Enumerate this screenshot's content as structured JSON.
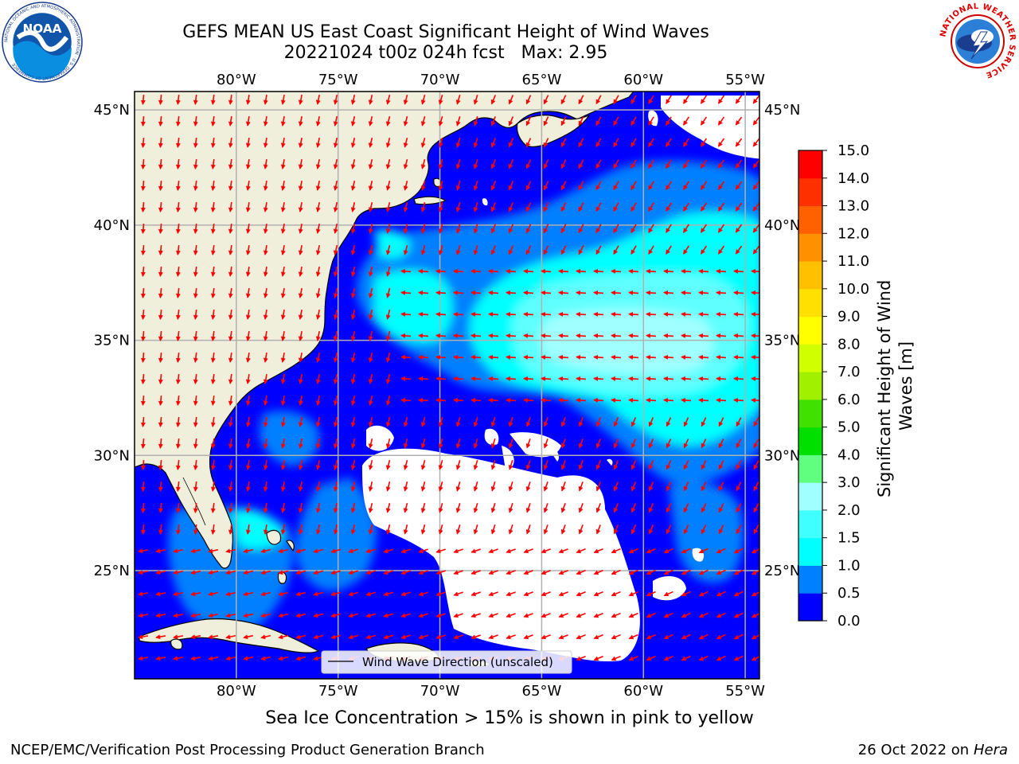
{
  "header": {
    "title_line1": "GEFS MEAN US East Coast Significant Height of Wind Waves",
    "title_line2": "20221024 t00z 024h fcst   Max: 2.95"
  },
  "logos": {
    "left": {
      "text": "NOAA",
      "icon": "noaa-logo-icon",
      "ring_text": "NATIONAL OCEANIC AND ATMOSPHERIC ADMINISTRATION · U.S. DEPARTMENT OF COMMERCE"
    },
    "right": {
      "icon": "nws-logo-icon",
      "ring_text": "NATIONAL WEATHER SERVICE"
    }
  },
  "map": {
    "lon_labels": [
      "80°W",
      "75°W",
      "70°W",
      "65°W",
      "60°W",
      "55°W"
    ],
    "lat_labels": [
      "45°N",
      "40°N",
      "35°N",
      "30°N",
      "25°N"
    ],
    "lon_values": [
      -80,
      -75,
      -70,
      -65,
      -60,
      -55
    ],
    "lat_values": [
      45,
      40,
      35,
      30,
      25
    ],
    "extent": {
      "lon_min": -85,
      "lon_max": -54.3,
      "lat_min": 20.3,
      "lat_max": 45.8
    },
    "legend_label": "Wind Wave Direction (unscaled)",
    "colors": {
      "land": "#efefdc",
      "ocean_min": "#0000ff",
      "arrow": "#ff0000",
      "no_data": "#ffffff"
    }
  },
  "colorbar": {
    "label": "Significant Height of Wind Waves [m]",
    "ticks": [
      "0.0",
      "0.5",
      "1.0",
      "1.5",
      "2.0",
      "3.0",
      "4.0",
      "5.0",
      "6.0",
      "7.0",
      "8.0",
      "9.0",
      "10.0",
      "11.0",
      "12.0",
      "13.0",
      "14.0",
      "15.0"
    ],
    "colors": [
      "#0000ff",
      "#0080ff",
      "#00ffff",
      "#40ffff",
      "#a0ffff",
      "#60ff80",
      "#00e000",
      "#40e000",
      "#a0f000",
      "#d0ff00",
      "#ffff00",
      "#ffe000",
      "#ffc000",
      "#ff9000",
      "#ff6000",
      "#ff3000",
      "#ff0000"
    ]
  },
  "captions": {
    "sea_ice": "Sea Ice Concentration > 15% is shown in pink to yellow"
  },
  "footer": {
    "left": "NCEP/EMC/Verification Post Processing Product Generation Branch",
    "right_date": "26 Oct 2022 on",
    "right_host": "Hera"
  }
}
